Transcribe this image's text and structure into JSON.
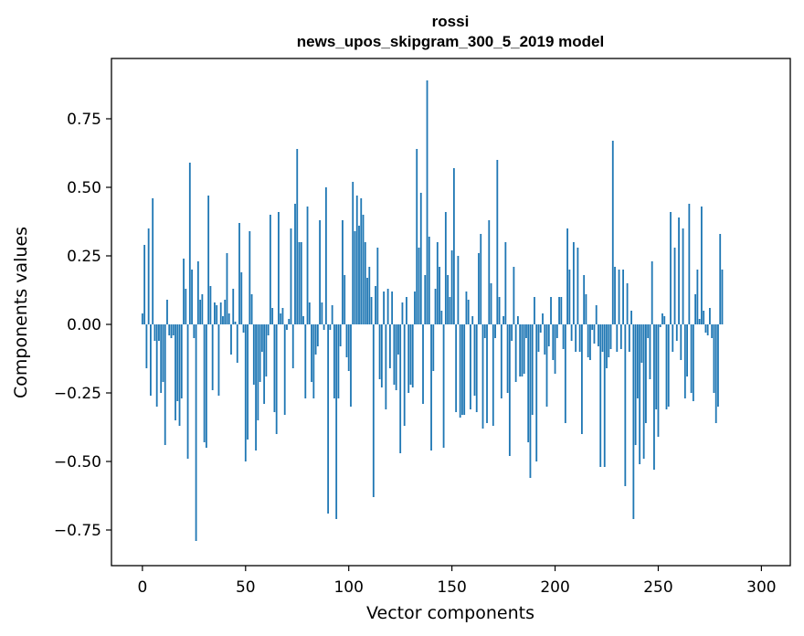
{
  "chart_data": {
    "type": "bar",
    "title": "rossi",
    "subtitle": "news_upos_skipgram_300_5_2019 model",
    "xlabel": "Vector components",
    "ylabel": "Components values",
    "xlim": [
      -15,
      314
    ],
    "ylim": [
      -0.88,
      0.97
    ],
    "xticks": [
      0,
      50,
      100,
      150,
      200,
      250,
      300
    ],
    "xtick_labels": [
      "0",
      "50",
      "100",
      "150",
      "200",
      "250",
      "300"
    ],
    "yticks": [
      -0.75,
      -0.5,
      -0.25,
      0.0,
      0.25,
      0.5,
      0.75
    ],
    "ytick_labels": [
      "−0.75",
      "−0.50",
      "−0.25",
      "0.00",
      "0.25",
      "0.50",
      "0.75"
    ],
    "bar_color": "#1f77b4",
    "values": [
      0.04,
      0.29,
      -0.16,
      0.35,
      -0.26,
      0.46,
      -0.06,
      -0.3,
      -0.06,
      -0.25,
      -0.21,
      -0.44,
      0.09,
      -0.04,
      -0.05,
      -0.04,
      -0.35,
      -0.28,
      -0.37,
      -0.27,
      0.24,
      0.13,
      -0.49,
      0.59,
      0.2,
      -0.05,
      -0.79,
      0.23,
      0.09,
      0.11,
      -0.43,
      -0.45,
      0.47,
      0.14,
      -0.24,
      0.08,
      0.07,
      -0.26,
      0.08,
      0.03,
      0.09,
      0.26,
      0.04,
      -0.11,
      0.13,
      0.01,
      -0.14,
      0.37,
      0.19,
      -0.03,
      -0.5,
      -0.42,
      0.34,
      0.11,
      -0.22,
      -0.46,
      -0.35,
      -0.21,
      -0.1,
      -0.29,
      -0.19,
      -0.04,
      0.4,
      0.06,
      -0.32,
      -0.4,
      0.41,
      0.04,
      0.06,
      -0.33,
      -0.02,
      0.02,
      0.35,
      -0.16,
      0.44,
      0.64,
      0.3,
      0.3,
      0.03,
      -0.27,
      0.43,
      0.08,
      -0.21,
      -0.27,
      -0.11,
      -0.08,
      0.38,
      0.08,
      -0.02,
      0.5,
      -0.69,
      -0.02,
      0.07,
      -0.27,
      -0.71,
      -0.27,
      -0.08,
      0.38,
      0.18,
      -0.12,
      -0.17,
      -0.3,
      0.52,
      0.34,
      0.47,
      0.36,
      0.46,
      0.4,
      0.3,
      0.17,
      0.21,
      0.1,
      -0.63,
      0.14,
      0.28,
      -0.2,
      -0.23,
      0.12,
      -0.31,
      0.13,
      -0.16,
      0.12,
      -0.22,
      -0.24,
      -0.11,
      -0.47,
      0.08,
      -0.37,
      0.1,
      -0.25,
      -0.22,
      -0.23,
      0.12,
      0.64,
      0.28,
      0.48,
      -0.29,
      0.18,
      0.89,
      0.32,
      -0.46,
      -0.17,
      0.13,
      0.3,
      0.21,
      0.05,
      -0.45,
      0.41,
      0.18,
      0.1,
      0.27,
      0.57,
      -0.32,
      0.25,
      -0.34,
      -0.33,
      -0.33,
      0.12,
      0.09,
      -0.31,
      0.03,
      -0.26,
      -0.32,
      0.26,
      0.33,
      -0.38,
      -0.05,
      -0.36,
      0.38,
      0.15,
      -0.37,
      -0.05,
      0.6,
      0.1,
      -0.27,
      0.03,
      0.3,
      -0.25,
      -0.48,
      -0.06,
      0.21,
      -0.21,
      0.03,
      -0.19,
      -0.19,
      -0.18,
      -0.05,
      -0.43,
      -0.56,
      -0.33,
      0.1,
      -0.5,
      -0.1,
      -0.03,
      0.04,
      -0.11,
      -0.3,
      -0.08,
      0.1,
      -0.13,
      -0.18,
      -0.05,
      0.1,
      0.1,
      -0.09,
      -0.36,
      0.35,
      0.2,
      -0.06,
      0.3,
      -0.1,
      0.28,
      -0.1,
      -0.4,
      0.18,
      0.11,
      -0.12,
      -0.13,
      -0.02,
      -0.07,
      0.07,
      -0.08,
      -0.52,
      -0.1,
      -0.52,
      -0.16,
      -0.12,
      -0.09,
      0.67,
      0.21,
      -0.1,
      0.2,
      -0.09,
      0.2,
      -0.59,
      0.15,
      -0.1,
      0.05,
      -0.71,
      -0.44,
      -0.27,
      -0.51,
      -0.14,
      -0.49,
      -0.36,
      -0.05,
      -0.2,
      0.23,
      -0.53,
      -0.31,
      -0.41,
      -0.01,
      0.04,
      0.03,
      -0.31,
      -0.3,
      0.41,
      -0.1,
      0.28,
      -0.06,
      0.39,
      -0.13,
      0.35,
      -0.27,
      -0.19,
      0.44,
      -0.25,
      -0.28,
      0.11,
      0.2,
      0.02,
      0.43,
      0.05,
      -0.03,
      -0.04,
      0.06,
      -0.05,
      -0.25,
      -0.36,
      -0.3,
      0.33,
      0.2
    ]
  }
}
